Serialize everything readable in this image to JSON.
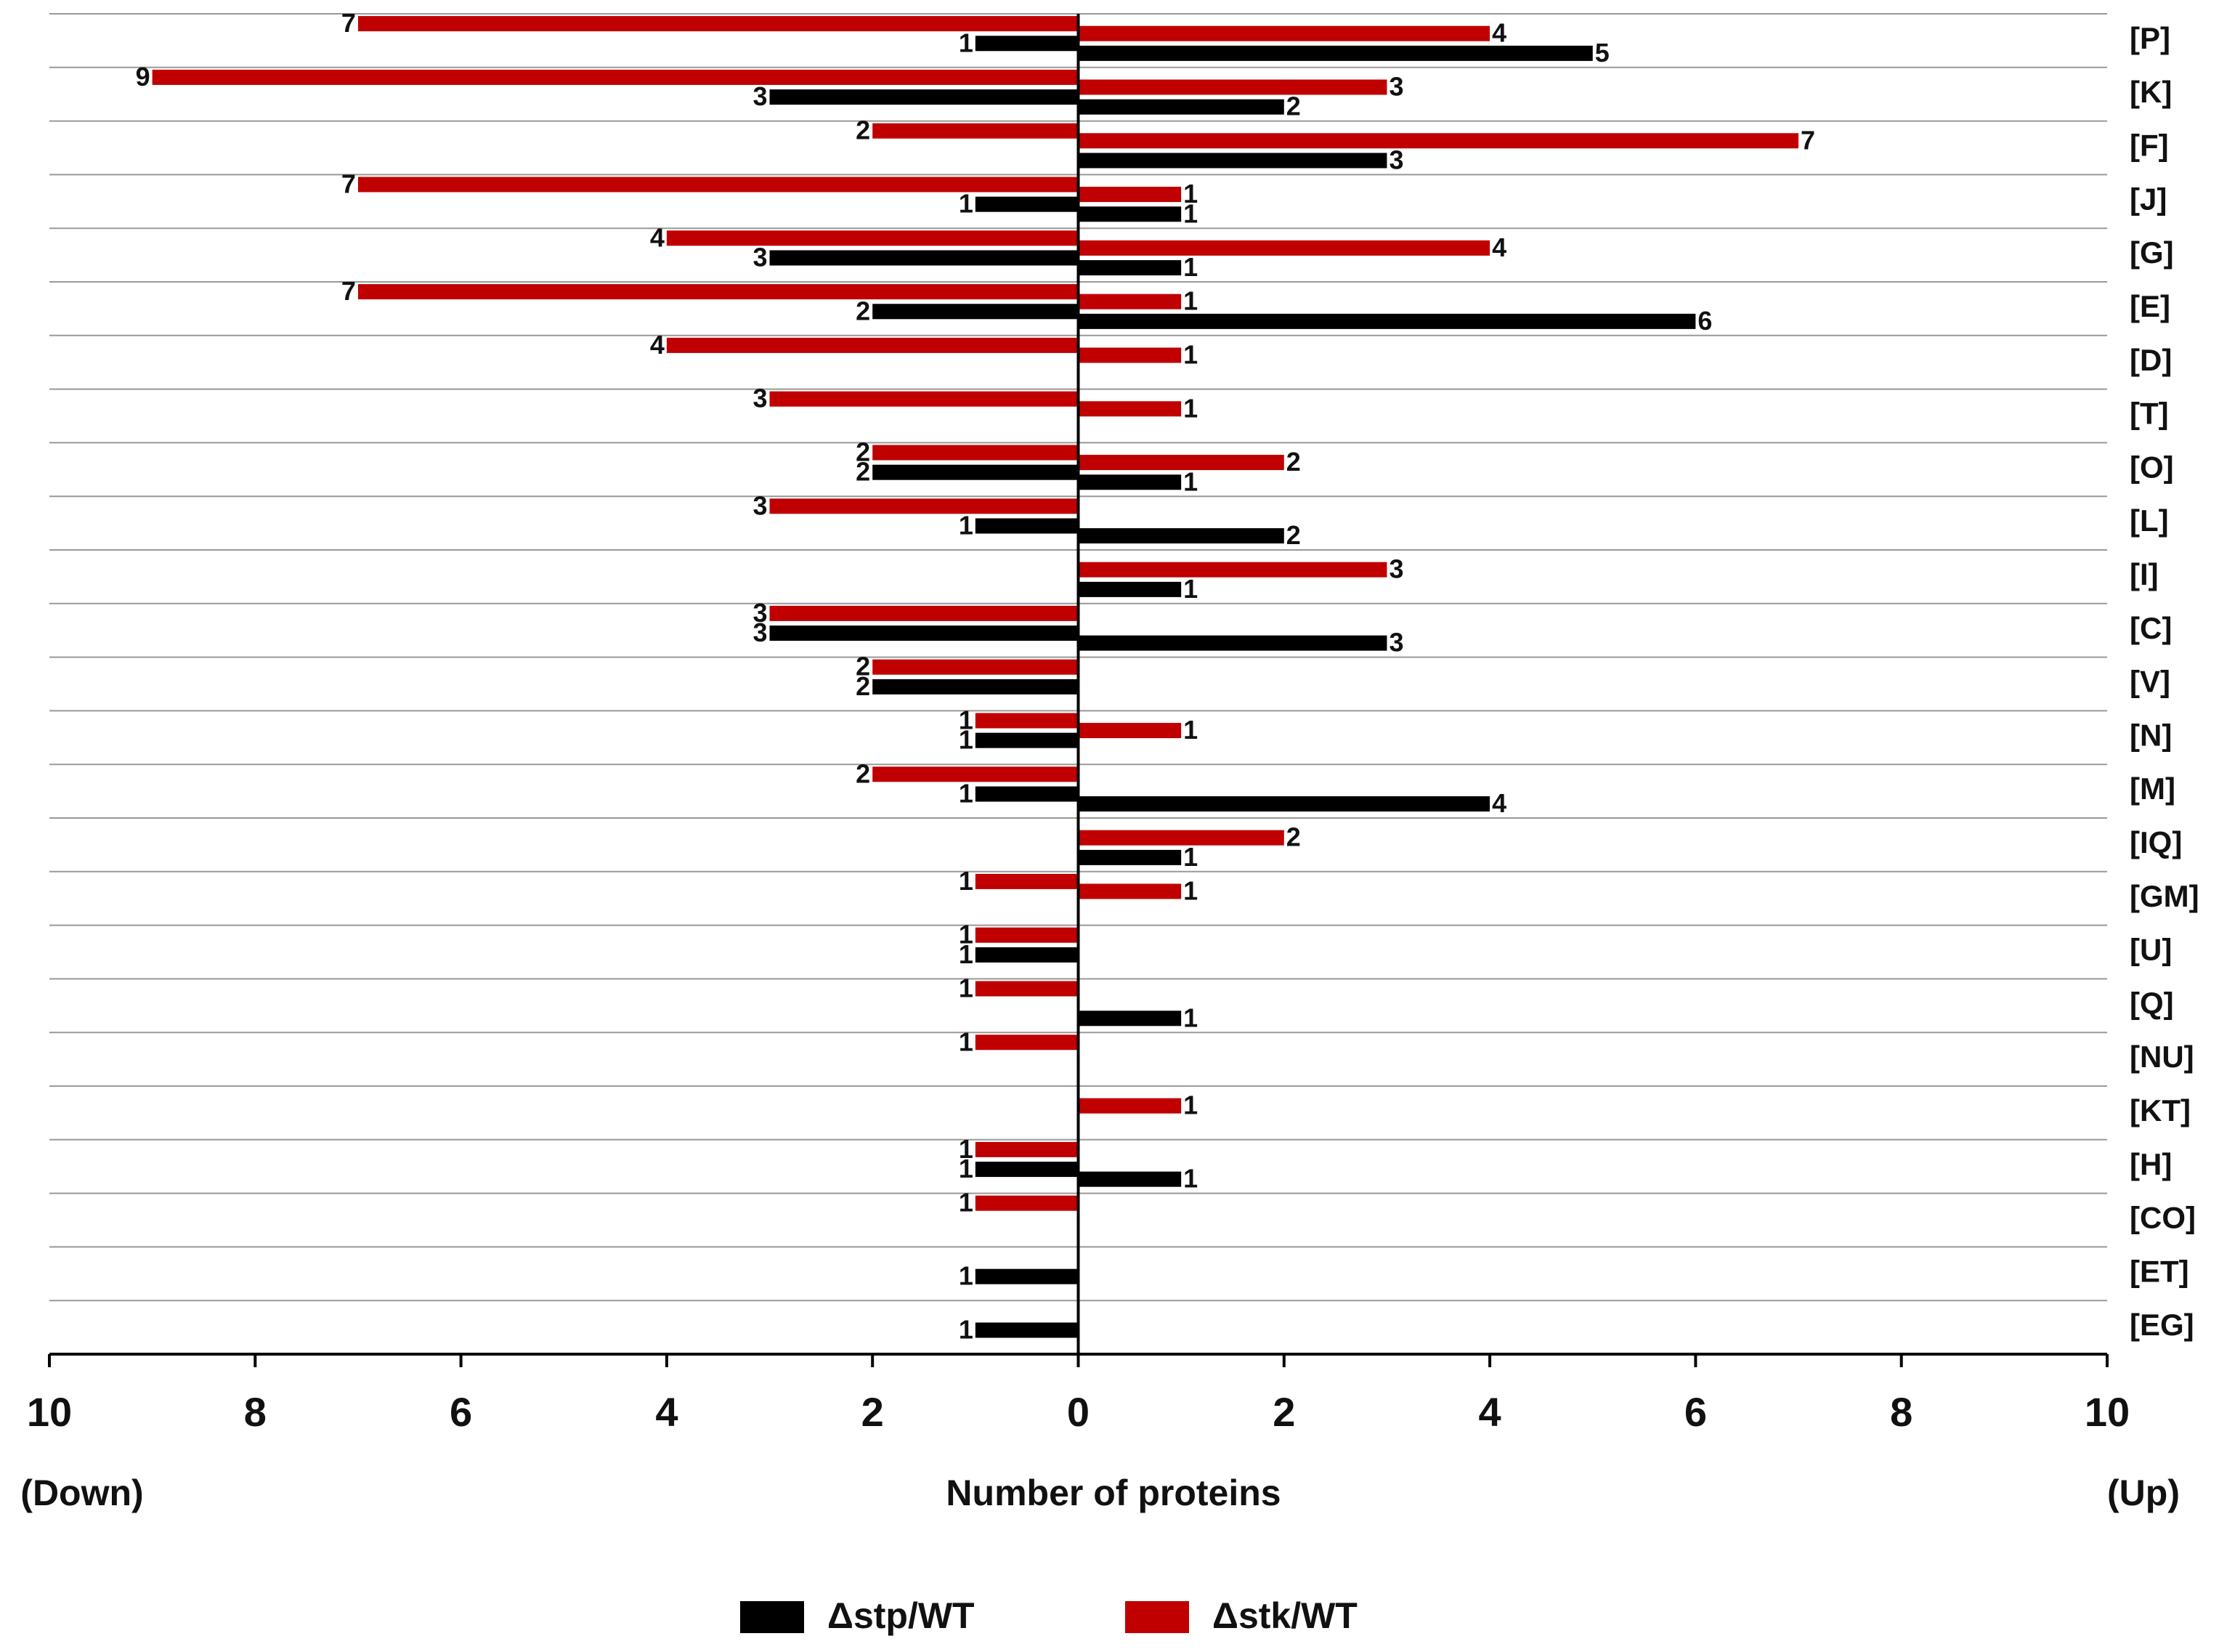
{
  "chart_data": {
    "type": "butterfly-bar",
    "categories": [
      "[P]",
      "[K]",
      "[F]",
      "[J]",
      "[G]",
      "[E]",
      "[D]",
      "[T]",
      "[O]",
      "[L]",
      "[I]",
      "[C]",
      "[V]",
      "[N]",
      "[M]",
      "[IQ]",
      "[GM]",
      "[U]",
      "[Q]",
      "[NU]",
      "[KT]",
      "[H]",
      "[CO]",
      "[ET]",
      "[EG]"
    ],
    "series": [
      {
        "name": "Δstp/WT",
        "color": "#000000",
        "down": [
          -1,
          -3,
          null,
          -1,
          -3,
          -2,
          null,
          null,
          -2,
          -1,
          null,
          -3,
          -2,
          -1,
          -1,
          null,
          null,
          -1,
          null,
          null,
          null,
          -1,
          null,
          -1,
          -1
        ],
        "down_labels": [
          "1",
          "3",
          null,
          "1",
          "3",
          "2",
          null,
          null,
          "2",
          "1",
          null,
          "3",
          "2",
          "1",
          "1",
          null,
          null,
          "1",
          null,
          null,
          null,
          "1",
          null,
          "1",
          "1"
        ],
        "up": [
          5,
          2,
          3,
          1,
          1,
          6,
          null,
          null,
          1,
          2,
          1,
          3,
          null,
          null,
          4,
          1,
          null,
          null,
          1,
          null,
          null,
          1,
          null,
          null,
          null
        ]
      },
      {
        "name": "Δstk/WT",
        "color": "#c00000",
        "down": [
          -7,
          -9,
          -2,
          -7,
          -4,
          -7,
          -4,
          -3,
          -2,
          -3,
          null,
          -3,
          -2,
          -1,
          -2,
          null,
          -1,
          -1,
          -1,
          -1,
          null,
          -1,
          -1,
          null,
          null
        ],
        "down_labels": [
          "7",
          "9",
          "2",
          "7",
          "4",
          "7",
          "4",
          "3",
          "2",
          "3",
          null,
          "3",
          "2",
          "1",
          "2",
          null,
          "1",
          "1",
          "1",
          "1",
          null,
          "1",
          "1",
          null,
          null
        ],
        "up": [
          4,
          3,
          7,
          1,
          4,
          1,
          1,
          1,
          2,
          null,
          3,
          null,
          null,
          1,
          null,
          2,
          1,
          null,
          null,
          null,
          1,
          null,
          null,
          null,
          null
        ]
      }
    ],
    "xlim": [
      -10,
      10
    ],
    "xticks": [
      {
        "value": -10,
        "label": "10"
      },
      {
        "value": -8,
        "label": "8"
      },
      {
        "value": -6,
        "label": "6"
      },
      {
        "value": -4,
        "label": "4"
      },
      {
        "value": -2,
        "label": "2"
      },
      0,
      2,
      4,
      6,
      8,
      10
    ],
    "xlabel": "Number of proteins",
    "annotations": [
      "(Down)",
      "(Up)"
    ]
  }
}
